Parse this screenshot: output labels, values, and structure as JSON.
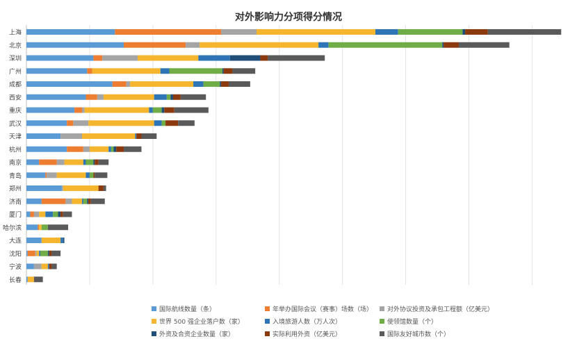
{
  "chart_data": {
    "type": "bar",
    "orientation": "horizontal",
    "stacked": true,
    "title": "对外影响力分项得分情况",
    "categories": [
      "上海",
      "北京",
      "深圳",
      "广州",
      "成都",
      "西安",
      "重庆",
      "武汉",
      "天津",
      "杭州",
      "南京",
      "青岛",
      "郑州",
      "济南",
      "厦门",
      "哈尔滨",
      "大连",
      "沈阳",
      "宁波",
      "长春"
    ],
    "xlim": [
      0,
      0.43
    ],
    "gridlines": true,
    "legend_position": "bottom",
    "series": [
      {
        "name": "国际航线数量（条）",
        "color": "#5B9BD5",
        "values": [
          0.07,
          0.077,
          0.053,
          0.048,
          0.068,
          0.047,
          0.038,
          0.032,
          0.027,
          0.032,
          0.01,
          0.015,
          0.028,
          0.012,
          0.003,
          0.009,
          0.012,
          0.001,
          0.006,
          0.001
        ]
      },
      {
        "name": "年举办国际会议（赛事）场数（场）",
        "color": "#ED7D31",
        "values": [
          0.084,
          0.049,
          0.007,
          0.004,
          0.011,
          0.009,
          0.006,
          0.005,
          0.0,
          0.013,
          0.014,
          0.001,
          0.0,
          0.019,
          0.003,
          0.001,
          0.0,
          0.006,
          0.0,
          0.0
        ]
      },
      {
        "name": "对外协议投资及承包工程额（亿美元）",
        "color": "#A5A5A5",
        "values": [
          0.028,
          0.011,
          0.028,
          0.0,
          0.003,
          0.005,
          0.002,
          0.012,
          0.017,
          0.005,
          0.006,
          0.008,
          0.001,
          0.005,
          0.004,
          0.0,
          0.0,
          0.001,
          0.006,
          0.0
        ]
      },
      {
        "name": "世界 500 强企业落户数（家）",
        "color": "#F5B52E",
        "values": [
          0.094,
          0.094,
          0.048,
          0.054,
          0.05,
          0.04,
          0.051,
          0.052,
          0.042,
          0.015,
          0.015,
          0.023,
          0.028,
          0.008,
          0.005,
          0.002,
          0.015,
          0.002,
          0.005,
          0.005
        ]
      },
      {
        "name": "入境旅游人数（万人次）",
        "color": "#2E75B6",
        "values": [
          0.018,
          0.008,
          0.025,
          0.007,
          0.008,
          0.01,
          0.003,
          0.006,
          0.001,
          0.002,
          0.002,
          0.003,
          0.0,
          0.001,
          0.006,
          0.0,
          0.002,
          0.001,
          0.001,
          0.0
        ]
      },
      {
        "name": "使领馆数量（个）",
        "color": "#70AD47",
        "values": [
          0.051,
          0.09,
          0.0,
          0.042,
          0.013,
          0.003,
          0.007,
          0.003,
          0.0,
          0.002,
          0.006,
          0.003,
          0.0,
          0.003,
          0.004,
          0.005,
          0.0,
          0.006,
          0.0,
          0.0
        ]
      },
      {
        "name": "外资及合资企业数量（家）",
        "color": "#1F4E79",
        "values": [
          0.002,
          0.001,
          0.024,
          0.001,
          0.001,
          0.002,
          0.002,
          0.0,
          0.0,
          0.002,
          0.001,
          0.0,
          0.0,
          0.001,
          0.002,
          0.0,
          0.001,
          0.001,
          0.0,
          0.0
        ]
      },
      {
        "name": "实际利用外资（亿美元）",
        "color": "#8B3A0E",
        "values": [
          0.018,
          0.012,
          0.006,
          0.007,
          0.006,
          0.006,
          0.008,
          0.01,
          0.004,
          0.006,
          0.003,
          0.001,
          0.004,
          0.002,
          0.002,
          0.0,
          0.0,
          0.002,
          0.002,
          0.0
        ]
      },
      {
        "name": "国际友好城市数（个）",
        "color": "#5A5A5A",
        "values": [
          0.058,
          0.04,
          0.045,
          0.018,
          0.017,
          0.02,
          0.027,
          0.013,
          0.012,
          0.014,
          0.008,
          0.01,
          0.002,
          0.011,
          0.007,
          0.016,
          0.0,
          0.007,
          0.004,
          0.007
        ]
      }
    ]
  }
}
